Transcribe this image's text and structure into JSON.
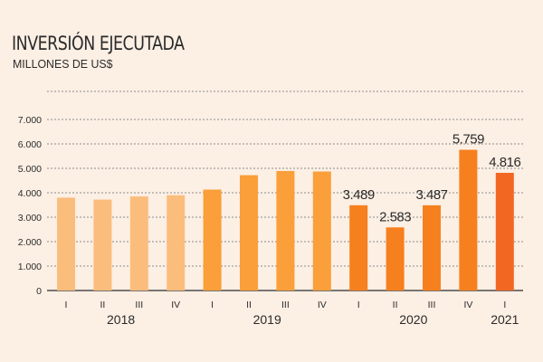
{
  "header": {
    "title": "INVERSIÓN EJECUTADA",
    "subtitle": "MILLONES DE US$"
  },
  "chart_data": {
    "type": "bar",
    "title": "INVERSIÓN EJECUTADA",
    "ylabel": "MILLONES DE US$",
    "xlabel": "",
    "ylim": [
      0,
      7000
    ],
    "yticks": [
      0,
      1000,
      2000,
      3000,
      4000,
      5000,
      6000,
      7000
    ],
    "ytick_labels": [
      "0",
      "1.000",
      "2.000",
      "3.000",
      "4.000",
      "5.000",
      "6.000",
      "7.000"
    ],
    "grid": true,
    "categories": [
      "I",
      "II",
      "III",
      "IV",
      "I",
      "II",
      "III",
      "IV",
      "I",
      "II",
      "III",
      "IV",
      "I"
    ],
    "years": [
      {
        "label": "2018",
        "quarters": 4
      },
      {
        "label": "2019",
        "quarters": 4
      },
      {
        "label": "2020",
        "quarters": 4
      },
      {
        "label": "2021",
        "quarters": 1
      }
    ],
    "values": [
      3800,
      3720,
      3850,
      3900,
      4130,
      4720,
      4890,
      4870,
      3489,
      2583,
      3487,
      5759,
      4816
    ],
    "data_labels": [
      "",
      "",
      "",
      "",
      "",
      "",
      "",
      "",
      "3.489",
      "2.583",
      "3.487",
      "5.759",
      "4.816"
    ],
    "colors": {
      "2018": "#fbbd7c",
      "2019": "#fa9f3a",
      "2020": "#f6801e",
      "2021": "#f26722"
    }
  }
}
